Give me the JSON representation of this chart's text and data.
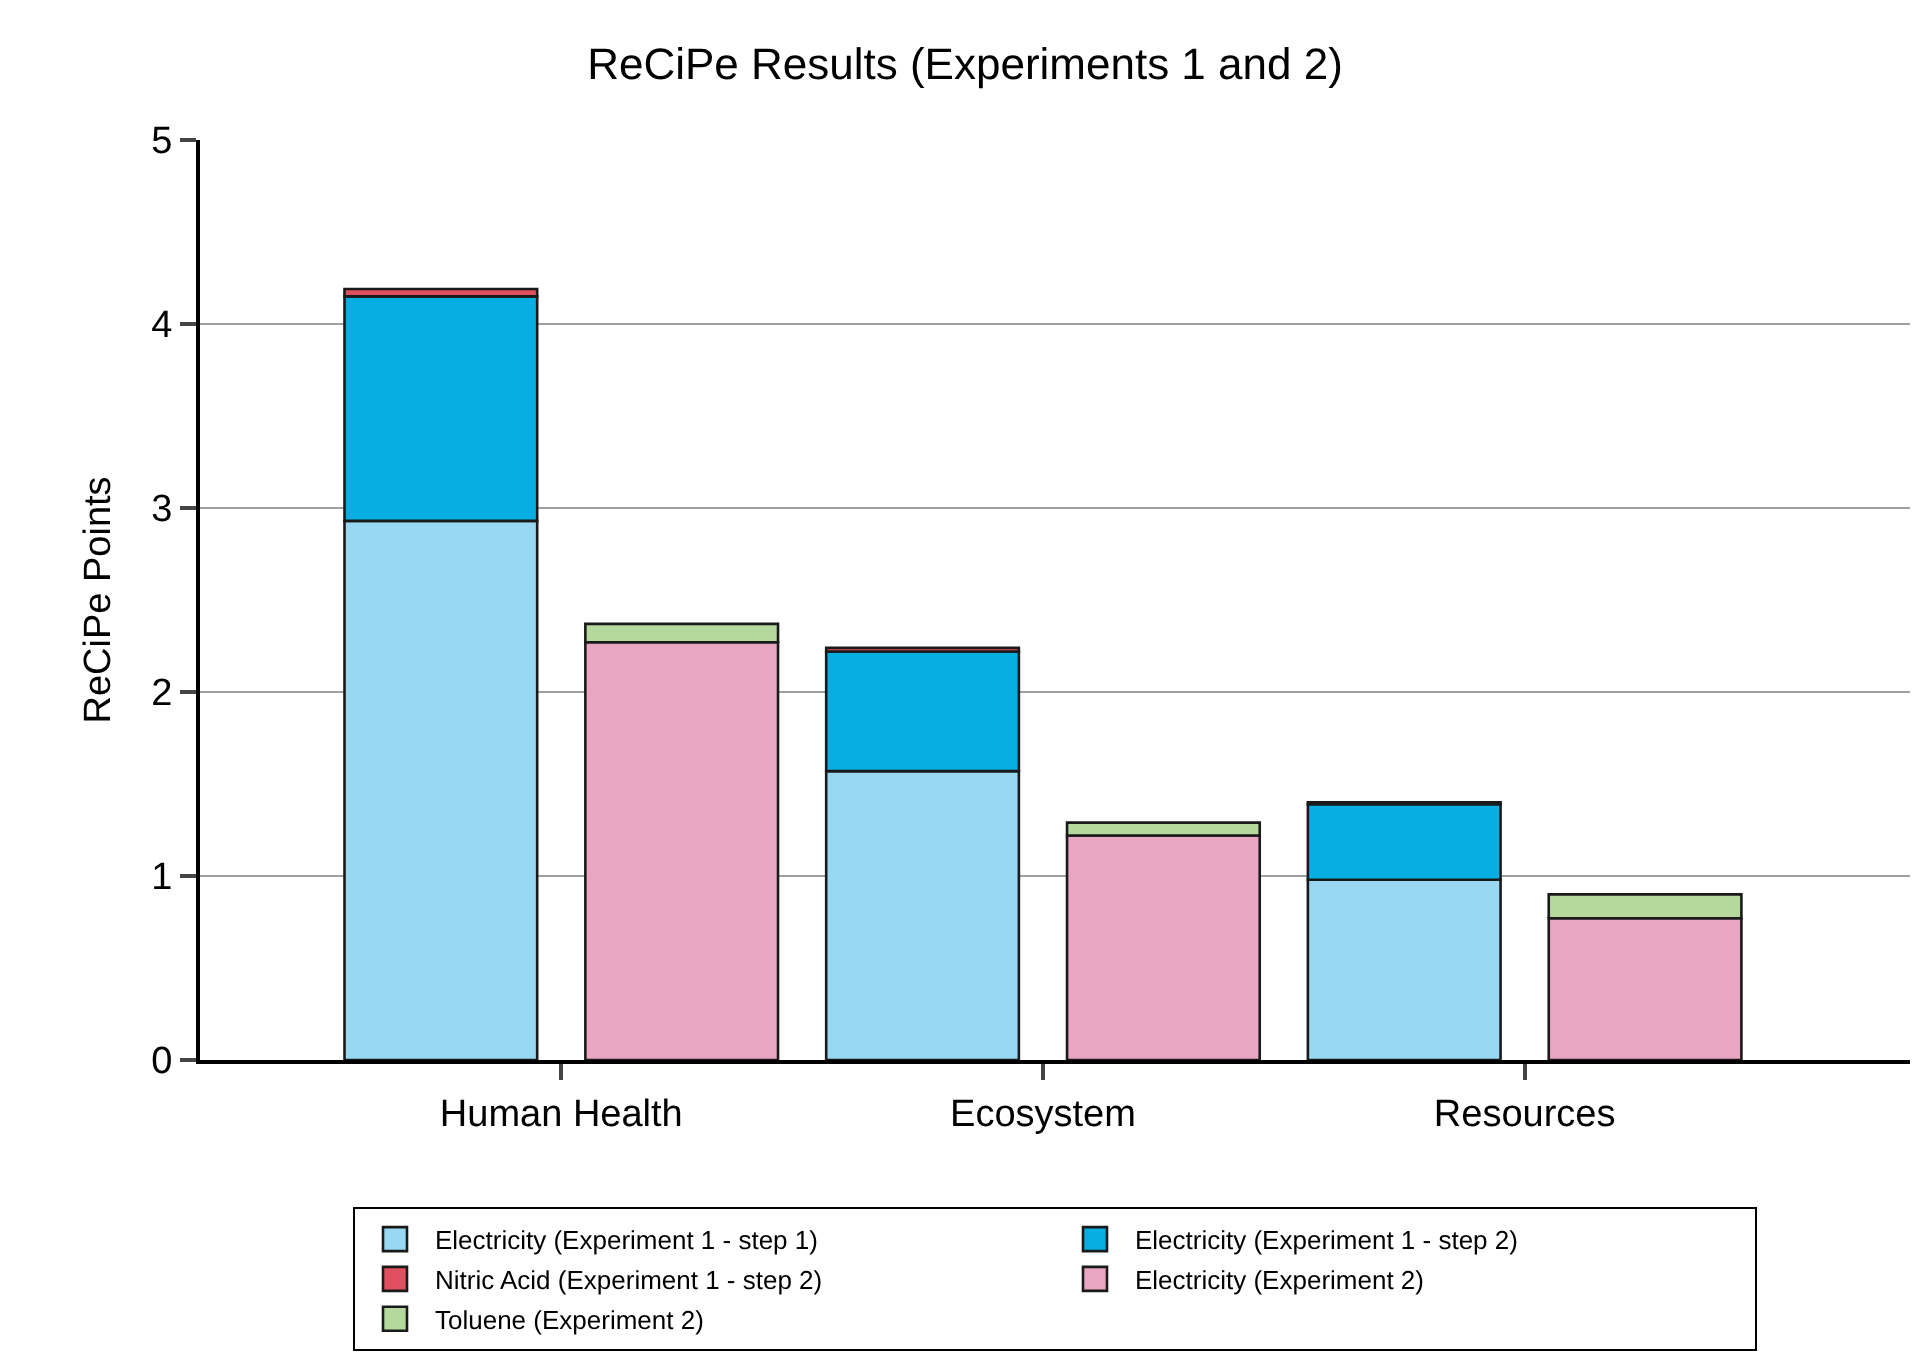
{
  "chart_data": {
    "type": "bar",
    "title": "ReCiPe Results (Experiments 1 and 2)",
    "ylabel": "ReCiPe Points",
    "categories": [
      "Human Health",
      null,
      "Ecosystem",
      null,
      "Resources",
      null
    ],
    "stacked": true,
    "series": [
      {
        "name": "Electricity (Experiment 1 - step 1)",
        "color": "#99d8f2",
        "values": [
          2.93,
          null,
          1.57,
          null,
          0.98,
          null
        ]
      },
      {
        "name": "Electricity (Experiment 1 - step 2)",
        "color": "#07aee2",
        "values": [
          1.22,
          null,
          0.65,
          null,
          0.41,
          null
        ]
      },
      {
        "name": "Nitric Acid (Experiment 1 - step 2)",
        "color": "#e0505e",
        "values": [
          0.04,
          null,
          0.02,
          null,
          0.01,
          null
        ]
      },
      {
        "name": "Electricity (Experiment 2)",
        "color": "#e9a6c2",
        "values": [
          null,
          2.27,
          null,
          1.22,
          null,
          0.77
        ]
      },
      {
        "name": "Toluene (Experiment 2)",
        "color": "#b5d89c",
        "values": [
          null,
          0.1,
          null,
          0.07,
          null,
          0.13
        ]
      }
    ],
    "ylim": [
      0,
      5
    ],
    "yticks": [
      0,
      1,
      2,
      3,
      4,
      5
    ],
    "grid": "y",
    "legend": "bottom"
  }
}
